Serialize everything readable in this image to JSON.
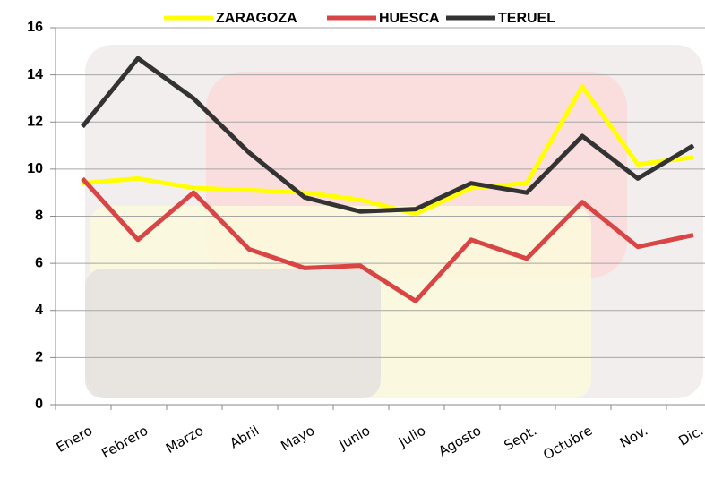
{
  "chart_data": {
    "type": "line",
    "categories": [
      "Enero",
      "Febrero",
      "Marzo",
      "Abril",
      "Mayo",
      "Junio",
      "Julio",
      "Agosto",
      "Sept.",
      "Octubre",
      "Nov.",
      "Dic."
    ],
    "series": [
      {
        "name": "ZARAGOZA",
        "color": "#ffff00",
        "values": [
          9.4,
          9.6,
          9.2,
          9.1,
          9.0,
          8.7,
          8.1,
          9.2,
          9.4,
          13.5,
          10.2,
          10.5
        ]
      },
      {
        "name": "HUESCA",
        "color": "#d94444",
        "values": [
          9.6,
          7.0,
          9.0,
          6.6,
          5.8,
          5.9,
          4.4,
          7.0,
          6.2,
          8.6,
          6.7,
          7.2
        ]
      },
      {
        "name": "TERUEL",
        "color": "#333333",
        "values": [
          11.8,
          14.7,
          13.0,
          10.7,
          8.8,
          8.2,
          8.3,
          9.4,
          9.0,
          11.4,
          9.6,
          11.0
        ]
      }
    ],
    "ylim": [
      0,
      16
    ],
    "yticks": [
      0,
      2,
      4,
      6,
      8,
      10,
      12,
      14,
      16
    ],
    "grid": true,
    "legend": "top"
  }
}
